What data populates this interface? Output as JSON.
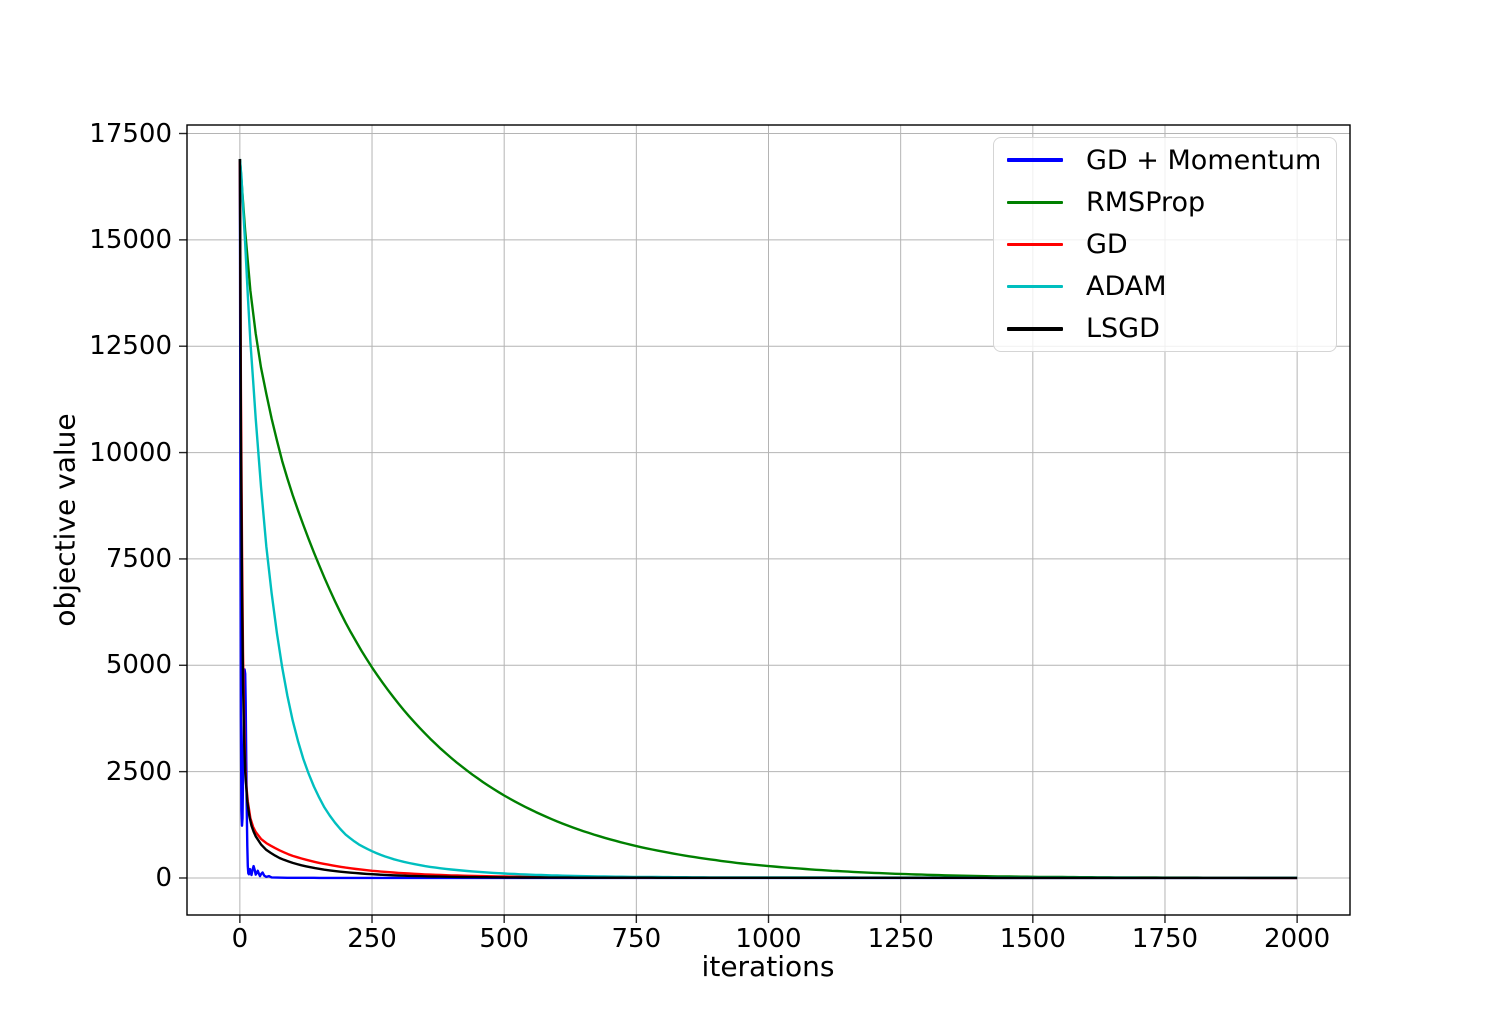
{
  "figure": {
    "background": "#ffffff",
    "grid_color": "#b4b4b4",
    "spine_color": "#000000",
    "tick_color": "#262626",
    "text_color": "#000000",
    "legend_border_color": "#d5d5d5"
  },
  "chart_data": {
    "type": "line",
    "title": "",
    "xlabel": "iterations",
    "ylabel": "objective value",
    "xlim": [
      -100,
      2100
    ],
    "ylim": [
      -870,
      17700
    ],
    "xticks": [
      0,
      250,
      500,
      750,
      1000,
      1250,
      1500,
      1750,
      2000
    ],
    "yticks": [
      0,
      2500,
      5000,
      7500,
      10000,
      12500,
      15000,
      17500
    ],
    "grid": true,
    "legend_position": "upper right",
    "line_width": 2.4,
    "series": [
      {
        "name": "GD + Momentum",
        "color": "#0000ff",
        "x": [
          0,
          1,
          2,
          3,
          4,
          5,
          6,
          7,
          8,
          9,
          10,
          11,
          12,
          13,
          14,
          15,
          16,
          17,
          18,
          19,
          20,
          22,
          24,
          26,
          28,
          30,
          32,
          34,
          36,
          38,
          40,
          43,
          46,
          50,
          55,
          60,
          70,
          90,
          150,
          300,
          2000
        ],
        "y": [
          16900,
          9500,
          3800,
          1600,
          1230,
          1400,
          2300,
          3400,
          4400,
          4900,
          4800,
          4100,
          2900,
          1700,
          750,
          280,
          110,
          90,
          150,
          210,
          160,
          70,
          200,
          280,
          190,
          80,
          120,
          170,
          100,
          45,
          90,
          130,
          55,
          25,
          45,
          15,
          8,
          5,
          3,
          2,
          2
        ]
      },
      {
        "name": "RMSProp",
        "color": "#008000",
        "x": [
          0,
          10,
          20,
          30,
          40,
          60,
          80,
          100,
          150,
          200,
          250,
          300,
          350,
          400,
          450,
          500,
          550,
          600,
          650,
          700,
          750,
          800,
          850,
          900,
          950,
          1000,
          1050,
          1100,
          1150,
          1200,
          1250,
          1300,
          1400,
          1500,
          1700,
          2000
        ],
        "y": [
          16900,
          15200,
          13800,
          12800,
          12000,
          10800,
          9800,
          9000,
          7350,
          6000,
          4950,
          4100,
          3400,
          2820,
          2340,
          1940,
          1610,
          1330,
          1100,
          910,
          750,
          620,
          510,
          420,
          340,
          280,
          230,
          185,
          150,
          120,
          95,
          75,
          45,
          28,
          12,
          4
        ]
      },
      {
        "name": "GD",
        "color": "#ff0000",
        "x": [
          0,
          2,
          4,
          6,
          8,
          10,
          12,
          15,
          20,
          25,
          30,
          40,
          50,
          75,
          100,
          125,
          150,
          175,
          200,
          250,
          300,
          350,
          400,
          500,
          600,
          800,
          2000
        ],
        "y": [
          16900,
          11500,
          7800,
          5300,
          3700,
          2700,
          2200,
          1800,
          1400,
          1200,
          1080,
          920,
          820,
          650,
          520,
          430,
          355,
          295,
          245,
          170,
          120,
          85,
          62,
          34,
          20,
          8,
          3
        ]
      },
      {
        "name": "ADAM",
        "color": "#00bfbf",
        "x": [
          0,
          3,
          6,
          10,
          15,
          20,
          25,
          30,
          40,
          50,
          60,
          80,
          100,
          120,
          140,
          160,
          180,
          200,
          225,
          250,
          275,
          300,
          350,
          400,
          450,
          500,
          550,
          600,
          700,
          900,
          2000
        ],
        "y": [
          16900,
          16500,
          15800,
          14900,
          13700,
          12600,
          11700,
          10800,
          9200,
          7800,
          6700,
          4950,
          3700,
          2800,
          2150,
          1660,
          1300,
          1020,
          790,
          630,
          505,
          410,
          280,
          200,
          145,
          105,
          78,
          58,
          32,
          14,
          4
        ]
      },
      {
        "name": "LSGD",
        "color": "#000000",
        "x": [
          0,
          2,
          4,
          6,
          8,
          10,
          14,
          18,
          22,
          26,
          30,
          40,
          50,
          75,
          100,
          125,
          150,
          200,
          250,
          300,
          400,
          500,
          700,
          2000
        ],
        "y": [
          16900,
          10500,
          6800,
          4600,
          3300,
          2500,
          1800,
          1450,
          1230,
          1090,
          980,
          790,
          660,
          470,
          355,
          275,
          215,
          135,
          88,
          58,
          27,
          14,
          6,
          2
        ]
      }
    ]
  }
}
